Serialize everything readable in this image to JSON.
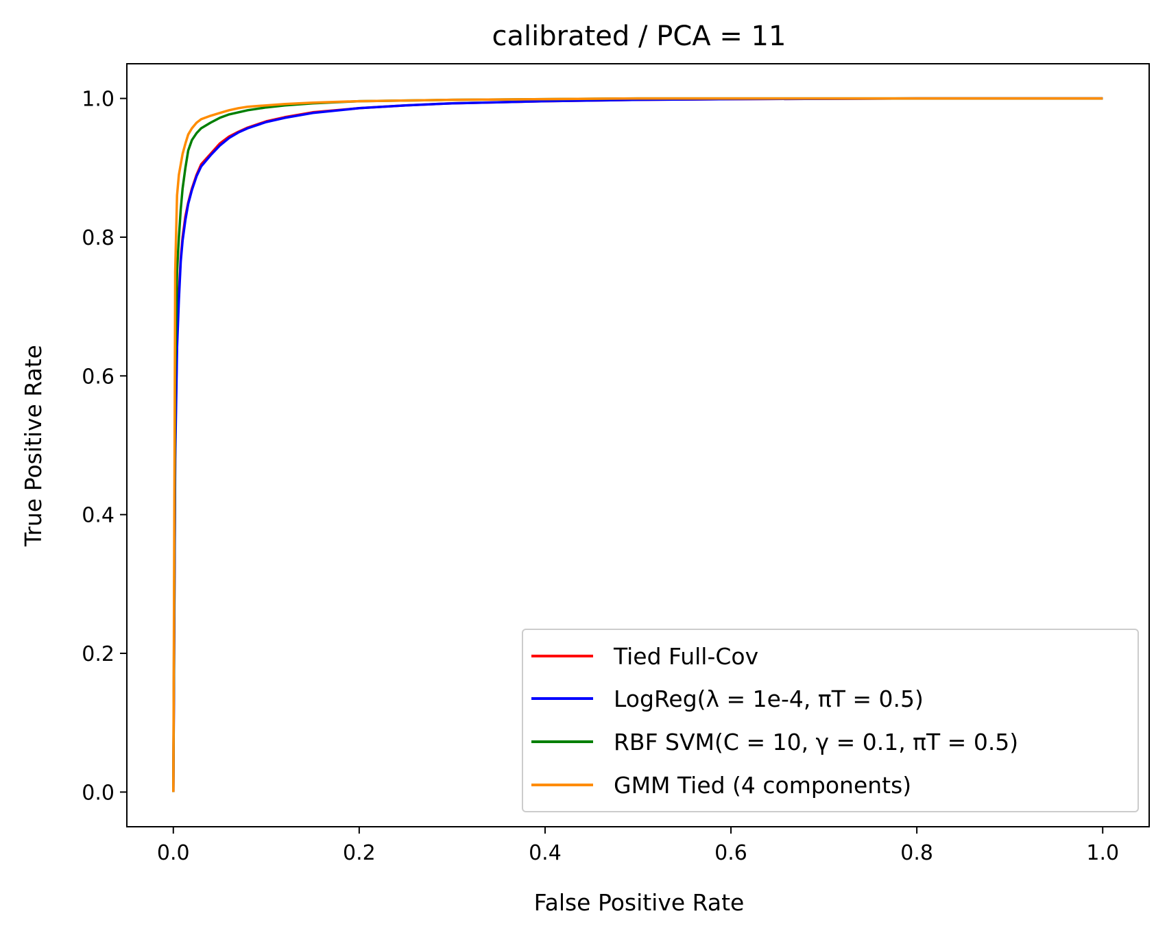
{
  "chart_data": {
    "type": "line",
    "title": "calibrated / PCA = 11",
    "xlabel": "False Positive Rate",
    "ylabel": "True Positive Rate",
    "xlim": [
      -0.05,
      1.05
    ],
    "ylim": [
      -0.05,
      1.05
    ],
    "xticks": [
      0.0,
      0.2,
      0.4,
      0.6,
      0.8,
      1.0
    ],
    "yticks": [
      0.0,
      0.2,
      0.4,
      0.6,
      0.8,
      1.0
    ],
    "xtick_labels": [
      "0.0",
      "0.2",
      "0.4",
      "0.6",
      "0.8",
      "1.0"
    ],
    "ytick_labels": [
      "0.0",
      "0.2",
      "0.4",
      "0.6",
      "0.8",
      "1.0"
    ],
    "grid": false,
    "legend_position": "lower-right",
    "series": [
      {
        "name": "Tied Full-Cov",
        "color": "#ff0000",
        "x": [
          0.0,
          0.002,
          0.004,
          0.006,
          0.008,
          0.01,
          0.013,
          0.016,
          0.02,
          0.025,
          0.03,
          0.04,
          0.05,
          0.06,
          0.07,
          0.08,
          0.1,
          0.12,
          0.15,
          0.2,
          0.25,
          0.3,
          0.4,
          0.5,
          0.6,
          0.8,
          1.0
        ],
        "y": [
          0.0,
          0.5,
          0.65,
          0.72,
          0.77,
          0.8,
          0.83,
          0.85,
          0.87,
          0.89,
          0.905,
          0.92,
          0.935,
          0.945,
          0.952,
          0.958,
          0.967,
          0.973,
          0.98,
          0.986,
          0.99,
          0.993,
          0.996,
          0.998,
          0.999,
          1.0,
          1.0
        ]
      },
      {
        "name": "LogReg(λ = 1e-4, πT = 0.5)",
        "color": "#0000ff",
        "x": [
          0.0,
          0.002,
          0.004,
          0.006,
          0.008,
          0.01,
          0.013,
          0.016,
          0.02,
          0.025,
          0.03,
          0.04,
          0.05,
          0.06,
          0.07,
          0.08,
          0.1,
          0.12,
          0.15,
          0.2,
          0.25,
          0.3,
          0.4,
          0.5,
          0.6,
          0.8,
          1.0
        ],
        "y": [
          0.0,
          0.48,
          0.64,
          0.71,
          0.765,
          0.795,
          0.825,
          0.848,
          0.868,
          0.888,
          0.902,
          0.918,
          0.932,
          0.943,
          0.951,
          0.957,
          0.966,
          0.972,
          0.979,
          0.986,
          0.99,
          0.993,
          0.996,
          0.998,
          0.999,
          1.0,
          1.0
        ]
      },
      {
        "name": "RBF SVM(C = 10, γ = 0.1, πT = 0.5)",
        "color": "#007f00",
        "x": [
          0.0,
          0.002,
          0.004,
          0.006,
          0.008,
          0.01,
          0.013,
          0.016,
          0.02,
          0.025,
          0.03,
          0.04,
          0.05,
          0.06,
          0.08,
          0.1,
          0.12,
          0.15,
          0.2,
          0.3,
          0.4,
          0.5,
          0.7,
          1.0
        ],
        "y": [
          0.0,
          0.6,
          0.75,
          0.8,
          0.84,
          0.87,
          0.9,
          0.925,
          0.94,
          0.95,
          0.957,
          0.965,
          0.972,
          0.977,
          0.983,
          0.987,
          0.99,
          0.993,
          0.996,
          0.998,
          0.999,
          1.0,
          1.0,
          1.0
        ]
      },
      {
        "name": "GMM Tied (4 components)",
        "color": "#ff8c00",
        "x": [
          0.0,
          0.002,
          0.004,
          0.006,
          0.008,
          0.01,
          0.013,
          0.016,
          0.02,
          0.025,
          0.03,
          0.04,
          0.05,
          0.06,
          0.07,
          0.08,
          0.1,
          0.12,
          0.15,
          0.2,
          0.3,
          0.4,
          0.5,
          0.7,
          1.0
        ],
        "y": [
          0.0,
          0.75,
          0.86,
          0.89,
          0.905,
          0.92,
          0.935,
          0.948,
          0.957,
          0.965,
          0.97,
          0.975,
          0.979,
          0.983,
          0.986,
          0.988,
          0.99,
          0.992,
          0.994,
          0.996,
          0.998,
          0.999,
          1.0,
          1.0,
          1.0
        ]
      }
    ]
  }
}
